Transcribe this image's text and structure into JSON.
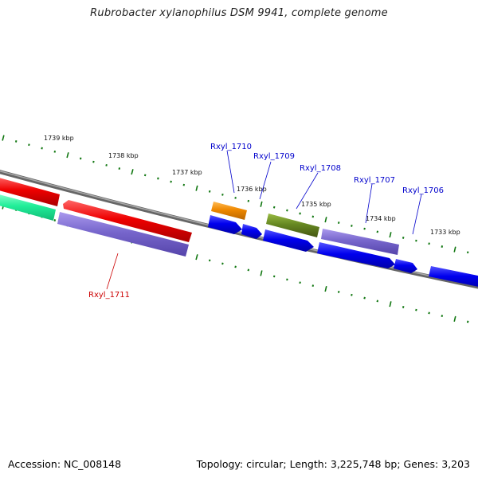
{
  "title": "Rubrobacter xylanophilus DSM 9941, complete genome",
  "footer": {
    "accession": "Accession: NC_008148",
    "summary": "Topology: circular; Length: 3,225,748 bp; Genes: 3,203"
  },
  "colors": {
    "forward_cds": "#0000ee",
    "reverse_red": "#ee0000",
    "purple": "#7766cc",
    "olive": "#668822",
    "orange": "#ee8800",
    "teal": "#22ee99",
    "backbone": "#888888",
    "ticks": "#117711",
    "label_blue": "#0000cc",
    "label_red": "#cc0000"
  },
  "scale": {
    "ticks_kbp": [
      "1739 kbp",
      "1738 kbp",
      "1737 kbp",
      "1736 kbp",
      "1735 kbp",
      "1734 kbp",
      "1733 kbp"
    ]
  },
  "genes": [
    {
      "label": "Rxyl_1711",
      "color": "red"
    },
    {
      "label": "Rxyl_1710",
      "color": "blue"
    },
    {
      "label": "Rxyl_1709",
      "color": "blue"
    },
    {
      "label": "Rxyl_1708",
      "color": "blue"
    },
    {
      "label": "Rxyl_1707",
      "color": "blue"
    },
    {
      "label": "Rxyl_1706",
      "color": "blue"
    }
  ]
}
